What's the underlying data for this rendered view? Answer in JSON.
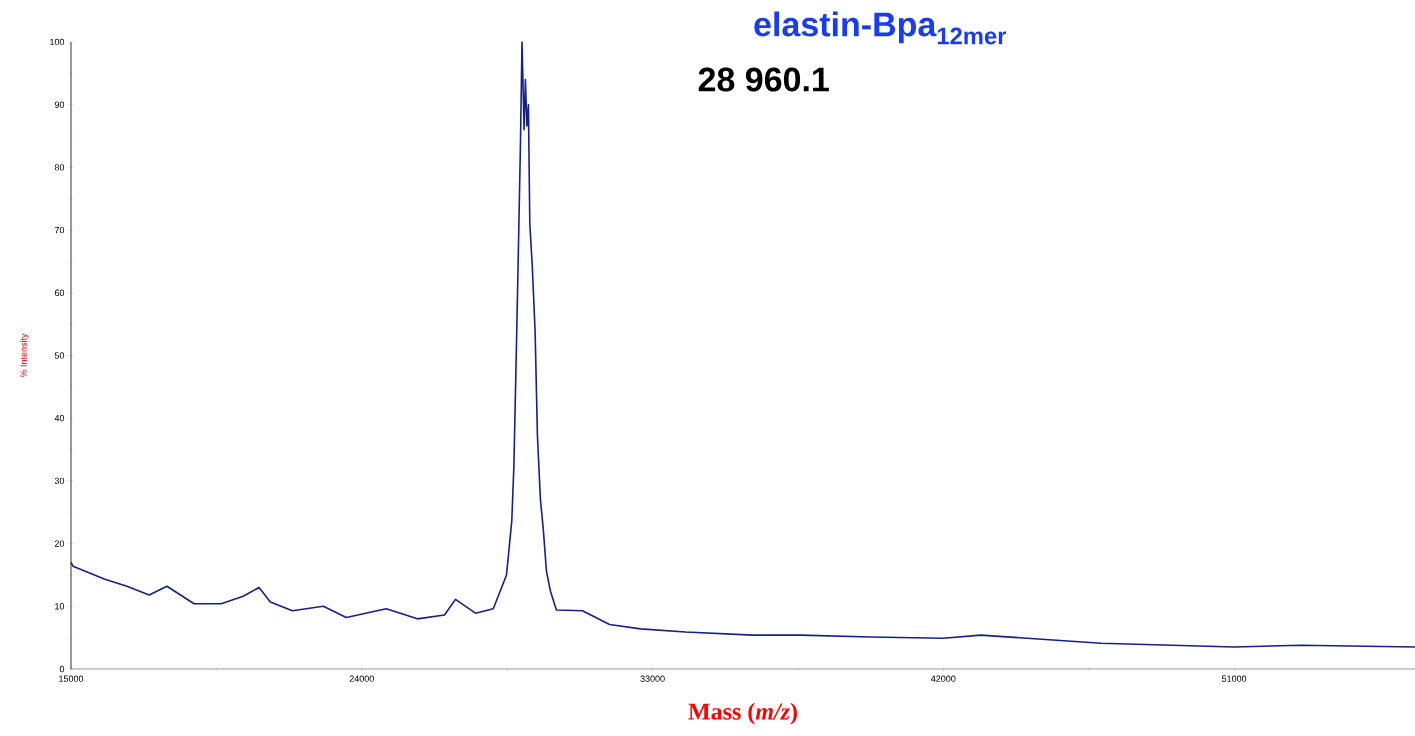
{
  "chart_data": {
    "type": "line",
    "title": "elastin-Bpa$_{12mer}$",
    "xlabel": "Mass (*m/z*)",
    "ylabel": "% Intensity",
    "annotations": [
      "28 960.1"
    ],
    "xlim": [
      15000,
      56600
    ],
    "xticks": [
      15000,
      24000,
      33000,
      42000,
      51000
    ],
    "ylim": [
      0,
      100
    ],
    "yticks": [
      0,
      10,
      20,
      30,
      40,
      50,
      60,
      70,
      80,
      90,
      100
    ],
    "grid": false,
    "marker": "none",
    "line_style": "solid",
    "series": [
      {
        "color": "#14208c",
        "x": [
          15000,
          15060,
          16050,
          16730,
          17420,
          17970,
          18810,
          19650,
          20330,
          20820,
          21170,
          21850,
          22810,
          23520,
          24760,
          25720,
          26560,
          26900,
          27520,
          28070,
          28480,
          28643,
          28709,
          28771,
          28836,
          28910,
          28960,
          29024,
          29065,
          29111,
          29158,
          29201,
          29276,
          29366,
          29437,
          29530,
          29620,
          29716,
          29840,
          30025,
          30830,
          31670,
          32630,
          34020,
          36100,
          37580,
          39750,
          42000,
          43160,
          46880,
          51000,
          53070,
          56600
        ],
        "values": [
          17,
          16.4,
          14.3,
          13.2,
          11.8,
          13.2,
          10.4,
          10.4,
          11.6,
          13,
          10.7,
          9.3,
          10,
          8.2,
          9.6,
          8,
          8.6,
          11.1,
          8.9,
          9.6,
          15,
          23.6,
          32.5,
          47.5,
          63.8,
          83.3,
          100,
          86,
          94,
          86.6,
          90,
          71,
          64.4,
          53.7,
          37.2,
          27,
          22.2,
          15.6,
          12.4,
          9.4,
          9.3,
          7.1,
          6.4,
          5.9,
          5.4,
          5.4,
          5.1,
          4.9,
          5.4,
          4.1,
          3.5,
          3.8,
          3.5
        ]
      }
    ]
  }
}
